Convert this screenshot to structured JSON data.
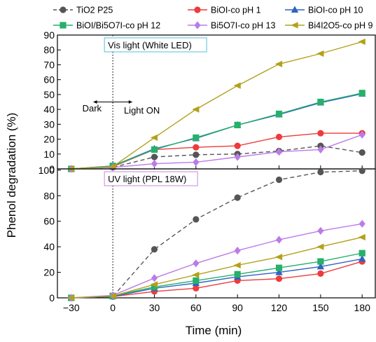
{
  "chart_data": {
    "type": "line",
    "xlabel": "Time (min)",
    "ylabel": "Phenol degradation (%)",
    "x": [
      -30,
      0,
      30,
      60,
      90,
      120,
      150,
      180
    ],
    "xticks": [
      "−30",
      "0",
      "30",
      "60",
      "90",
      "120",
      "150",
      "180"
    ],
    "xlim": [
      -40,
      190
    ],
    "annotations": {
      "dark": "Dark",
      "light_on": "Light ON"
    },
    "legend": [
      {
        "name": "TiO2 P25",
        "color": "#555555",
        "marker": "circle",
        "dash": true
      },
      {
        "name": "BiOI-co pH 1",
        "color": "#ee3b3b",
        "marker": "circle"
      },
      {
        "name": "BiOI-co pH 10",
        "color": "#2e62c4",
        "marker": "triangle"
      },
      {
        "name": "BiOI/Bi5O7I-co pH 12",
        "color": "#26b06a",
        "marker": "square"
      },
      {
        "name": "Bi5O7I-co pH 13",
        "color": "#bb7be8",
        "marker": "diamond"
      },
      {
        "name": "Bi4I2O5-co pH 9",
        "color": "#b3a11a",
        "marker": "tri-left"
      }
    ],
    "panels": [
      {
        "label": "Vis light (White LED)",
        "ylim": [
          0,
          90
        ],
        "yticks": [
          "0",
          "10",
          "20",
          "30",
          "40",
          "50",
          "60",
          "70",
          "80",
          "90"
        ],
        "series": [
          {
            "name": "TiO2 P25",
            "values": [
              0,
              1,
              8,
              9.5,
              10,
              12,
              15.5,
              11
            ]
          },
          {
            "name": "BiOI-co pH 1",
            "values": [
              0,
              1.5,
              13,
              14.5,
              15.5,
              21.5,
              24,
              24
            ]
          },
          {
            "name": "BiOI-co pH 10",
            "values": [
              0,
              2,
              13.5,
              20.5,
              29.5,
              36.5,
              44.5,
              50.5
            ]
          },
          {
            "name": "BiOI/Bi5O7I-co pH 12",
            "values": [
              0,
              2,
              13,
              21,
              29.5,
              37,
              45,
              51
            ]
          },
          {
            "name": "Bi5O7I-co pH 13",
            "values": [
              0,
              1,
              3.5,
              4.5,
              8,
              11.5,
              13,
              23
            ]
          },
          {
            "name": "Bi4I2O5-co pH 9",
            "values": [
              0,
              1.5,
              21,
              40,
              56,
              70.5,
              77.5,
              85.5
            ]
          }
        ]
      },
      {
        "label": "UV light (PPL 18W)",
        "ylim": [
          0,
          101
        ],
        "yticks": [
          "0",
          "20",
          "40",
          "60",
          "80",
          "100"
        ],
        "series": [
          {
            "name": "TiO2 P25",
            "values": [
              0,
              1,
              38,
              61.5,
              78.5,
              92.5,
              98.5,
              99.5
            ]
          },
          {
            "name": "BiOI-co pH 1",
            "values": [
              0,
              1,
              5,
              7.5,
              13.5,
              15,
              19,
              28.5
            ]
          },
          {
            "name": "BiOI-co pH 10",
            "values": [
              0,
              1,
              7.5,
              11.5,
              16.5,
              20,
              24.5,
              30.5
            ]
          },
          {
            "name": "BiOI/Bi5O7I-co pH 12",
            "values": [
              0,
              1.5,
              8.5,
              13.5,
              18.5,
              23.5,
              28.5,
              35
            ]
          },
          {
            "name": "Bi5O7I-co pH 13",
            "values": [
              0,
              2,
              15.5,
              27,
              37,
              45.5,
              52.5,
              58
            ]
          },
          {
            "name": "Bi4I2O5-co pH 9",
            "values": [
              0,
              1.5,
              10.5,
              18,
              25.5,
              32,
              40,
              47.5
            ]
          }
        ]
      }
    ]
  }
}
